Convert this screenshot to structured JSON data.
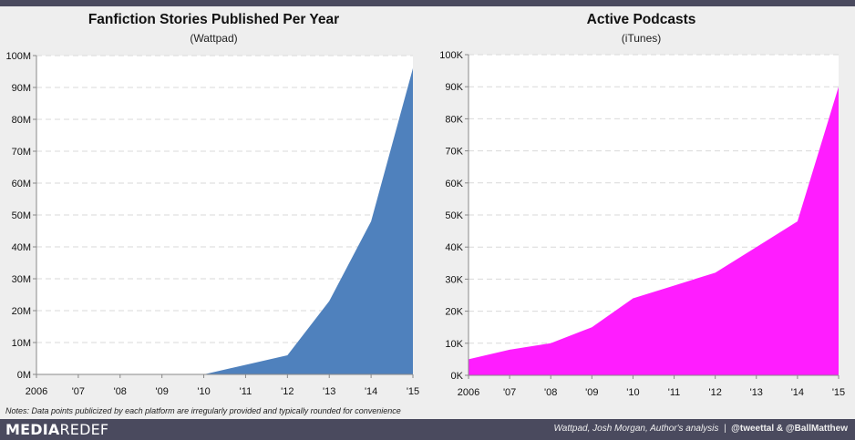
{
  "note": "Notes: Data points publicized by each platform are irregularly provided and typically rounded for convenience",
  "footer": {
    "logo_a": "MEDIA",
    "logo_b": "REDEF",
    "sources": "Wattpad, Josh Morgan, Author's analysis",
    "separator": "|",
    "handles": "@tweettal & @BallMatthew"
  },
  "chart_data": [
    {
      "type": "area",
      "title": "Fanfiction Stories Published Per Year",
      "subtitle": "(Wattpad)",
      "color": "#4f81bd",
      "categories": [
        "2006",
        "'07",
        "'08",
        "'09",
        "'10",
        "'11",
        "'12",
        "'13",
        "'14",
        "'15"
      ],
      "values": [
        0,
        0,
        0,
        0,
        0,
        3,
        6,
        23,
        48,
        96
      ],
      "y_ticks": [
        "0M",
        "10M",
        "20M",
        "30M",
        "40M",
        "50M",
        "60M",
        "70M",
        "80M",
        "90M",
        "100M"
      ],
      "ylim": [
        0,
        100
      ],
      "grid": true
    },
    {
      "type": "area",
      "title": "Active Podcasts",
      "subtitle": "(iTunes)",
      "color": "#ff1dff",
      "categories": [
        "2006",
        "'07",
        "'08",
        "'09",
        "'10",
        "'11",
        "'12",
        "'13",
        "'14",
        "'15"
      ],
      "values": [
        5,
        8,
        10,
        15,
        24,
        28,
        32,
        40,
        48,
        90
      ],
      "y_ticks": [
        "0K",
        "10K",
        "20K",
        "30K",
        "40K",
        "50K",
        "60K",
        "70K",
        "80K",
        "90K",
        "100K"
      ],
      "ylim": [
        0,
        100
      ],
      "grid": true
    }
  ]
}
